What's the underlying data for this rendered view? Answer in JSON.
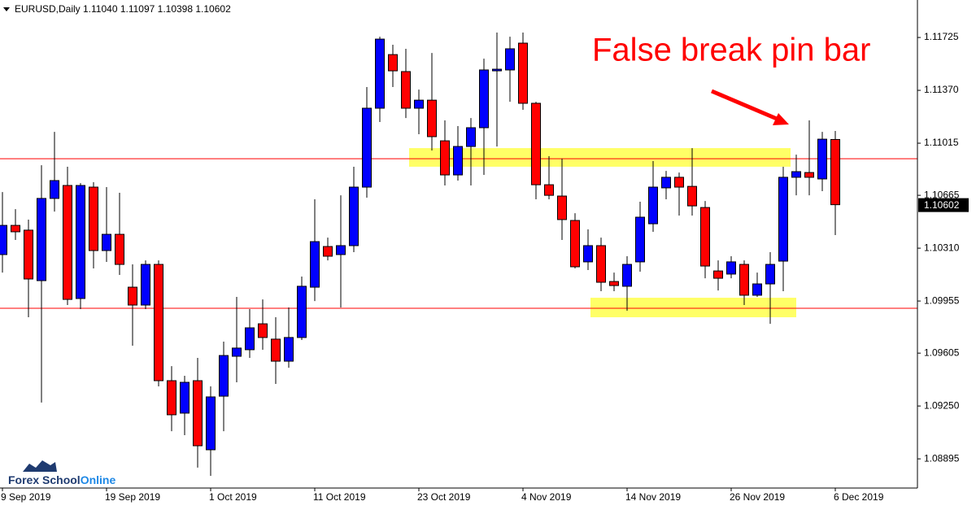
{
  "chart_data": {
    "type": "candlestick",
    "title": "EURUSD,Daily  1.11040 1.11097 1.10398 1.10602",
    "annotation": "False break pin bar",
    "categories": [
      "9 Sep 2019",
      null,
      null,
      null,
      null,
      null,
      null,
      null,
      "19 Sep 2019",
      null,
      null,
      null,
      null,
      null,
      null,
      null,
      "1 Oct 2019",
      null,
      null,
      null,
      null,
      null,
      null,
      null,
      "11 Oct 2019",
      null,
      null,
      null,
      null,
      null,
      null,
      null,
      "23 Oct 2019",
      null,
      null,
      null,
      null,
      null,
      null,
      null,
      "4 Nov 2019",
      null,
      null,
      null,
      null,
      null,
      null,
      null,
      "14 Nov 2019",
      null,
      null,
      null,
      null,
      null,
      null,
      null,
      "26 Nov 2019",
      null,
      null,
      null,
      null,
      null,
      null,
      null,
      "6 Dec 2019"
    ],
    "open": [
      1.10267,
      1.10463,
      1.10431,
      1.10092,
      1.10644,
      1.10731,
      1.09972,
      1.1072,
      1.10294,
      1.10403,
      1.10048,
      1.09928,
      1.10201,
      1.0942,
      1.09202,
      1.0942,
      1.08956,
      1.09316,
      1.09584,
      1.09628,
      1.09802,
      1.09699,
      1.09551,
      1.0971,
      1.10048,
      1.10321,
      1.10267,
      1.10327,
      1.1072,
      1.1125,
      1.1161,
      1.11496,
      1.1125,
      1.11304,
      1.11031,
      1.10802,
      1.10993,
      1.11119,
      1.11501,
      1.11507,
      1.11687,
      1.11283,
      1.10736,
      1.1066,
      1.10496,
      1.10218,
      1.10327,
      1.10086,
      1.10054,
      1.10218,
      1.10474,
      1.10715,
      1.10786,
      1.10725,
      1.10583,
      1.10157,
      1.10136,
      1.10201,
      1.09994,
      1.1007,
      1.10223,
      1.10786,
      1.10818,
      1.10775,
      1.1104
    ],
    "high": [
      1.10687,
      1.10572,
      1.10502,
      1.10867,
      1.11091,
      1.10857,
      1.10747,
      1.10753,
      1.1072,
      1.10682,
      1.10201,
      1.10228,
      1.10228,
      1.09518,
      1.09453,
      1.09573,
      1.09382,
      1.09682,
      1.09983,
      1.09901,
      1.09966,
      1.09846,
      1.09912,
      1.10119,
      1.10638,
      1.10381,
      1.10665,
      1.10857,
      1.11392,
      1.1173,
      1.11676,
      1.11649,
      1.11375,
      1.11621,
      1.11168,
      1.1113,
      1.11184,
      1.11583,
      1.11758,
      1.1173,
      1.11758,
      1.11293,
      1.10928,
      1.10911,
      1.10545,
      1.10436,
      1.10381,
      1.10146,
      1.10256,
      1.10622,
      1.10895,
      1.10829,
      1.10818,
      1.10982,
      1.10627,
      1.10228,
      1.10256,
      1.10228,
      1.10146,
      1.10283,
      1.10857,
      1.10938,
      1.11168,
      1.11091,
      1.11097
    ],
    "low": [
      1.10146,
      1.10365,
      1.09846,
      1.09273,
      1.10556,
      1.09928,
      1.09901,
      1.10174,
      1.10218,
      1.1013,
      1.09655,
      1.09901,
      1.09382,
      1.09081,
      1.09054,
      1.08836,
      1.08781,
      1.09081,
      1.09409,
      1.09573,
      1.09628,
      1.09398,
      1.09507,
      1.09693,
      1.09955,
      1.10228,
      1.09912,
      1.10283,
      1.10649,
      1.11157,
      1.11392,
      1.11184,
      1.11075,
      1.10966,
      1.10731,
      1.10764,
      1.10731,
      1.10802,
      1.10993,
      1.11293,
      1.11239,
      1.10638,
      1.10638,
      1.10365,
      1.10174,
      1.10163,
      1.10021,
      1.10021,
      1.0989,
      1.10152,
      1.1042,
      1.10638,
      1.10529,
      1.10529,
      1.10108,
      1.10026,
      1.10108,
      1.09928,
      1.09983,
      1.09802,
      1.10021,
      1.10665,
      1.10665,
      1.10693,
      1.10398
    ],
    "close": [
      1.10463,
      1.1042,
      1.10103,
      1.10644,
      1.10764,
      1.09966,
      1.10731,
      1.10294,
      1.10403,
      1.10201,
      1.09928,
      1.10201,
      1.0942,
      1.09191,
      1.09409,
      1.08983,
      1.09311,
      1.09589,
      1.09639,
      1.09775,
      1.0971,
      1.09551,
      1.0971,
      1.10054,
      1.10354,
      1.10256,
      1.10327,
      1.1072,
      1.1125,
      1.11714,
      1.11501,
      1.1125,
      1.11304,
      1.11059,
      1.10802,
      1.10993,
      1.11119,
      1.11507,
      1.11512,
      1.11649,
      1.11283,
      1.10736,
      1.10665,
      1.10502,
      1.10185,
      1.10327,
      1.10081,
      1.10059,
      1.10201,
      1.10518,
      1.1072,
      1.10786,
      1.1072,
      1.10594,
      1.1019,
      1.10108,
      1.10218,
      1.09994,
      1.1007,
      1.10201,
      1.10786,
      1.10824,
      1.10786,
      1.11042,
      1.10602
    ],
    "up_color": "#0000ff",
    "down_color": "#ff0000",
    "ylim": [
      1.08699,
      1.11933
    ],
    "yticks": [
      1.11725,
      {
        "value": 1.1137,
        "label": "1.11370"
      },
      1.11015,
      1.10665,
      {
        "value": 1.1031,
        "label": "1.10310"
      },
      1.09955,
      1.09605,
      {
        "value": 1.0925,
        "label": "1.09250"
      },
      1.08895
    ],
    "levels": [
      {
        "value": 1.10911,
        "color": "#ff0000"
      },
      {
        "value": 1.09906,
        "color": "#ff0000"
      }
    ],
    "zones": [
      {
        "range": [
          1.10857,
          1.10982
        ],
        "color": "#ffff66"
      },
      {
        "range": [
          1.09846,
          1.09977
        ],
        "color": "#ffff66"
      }
    ],
    "annotation_color": "#ff0000"
  },
  "logo": {
    "brand": "Forex School",
    "suffix": "Online"
  }
}
